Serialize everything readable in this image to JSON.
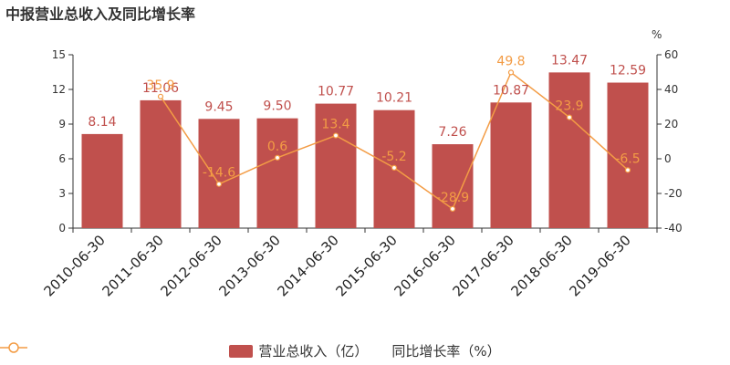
{
  "title": "中报营业总收入及同比增长率",
  "colors": {
    "bar": "#c0504d",
    "line": "#f39c45",
    "axis": "#333333",
    "grid": "#cccccc"
  },
  "chart_data": {
    "type": "bar",
    "title": "中报营业总收入及同比增长率",
    "categories": [
      "2010-06-30",
      "2011-06-30",
      "2012-06-30",
      "2013-06-30",
      "2014-06-30",
      "2015-06-30",
      "2016-06-30",
      "2017-06-30",
      "2018-06-30",
      "2019-06-30"
    ],
    "series": [
      {
        "name": "营业总收入（亿）",
        "type": "bar",
        "axis": "left",
        "values": [
          8.14,
          11.06,
          9.45,
          9.5,
          10.77,
          10.21,
          7.26,
          10.87,
          13.47,
          12.59
        ],
        "labels": [
          "8.14",
          "11.06",
          "9.45",
          "9.50",
          "10.77",
          "10.21",
          "7.26",
          "10.87",
          "13.47",
          "12.59"
        ]
      },
      {
        "name": "同比增长率（%）",
        "type": "line",
        "axis": "right",
        "values": [
          null,
          35.9,
          -14.6,
          0.6,
          13.4,
          -5.2,
          -28.9,
          49.8,
          23.9,
          -6.5
        ],
        "labels": [
          "",
          "35.9",
          "-14.6",
          "0.6",
          "13.4",
          "-5.2",
          "-28.9",
          "49.8",
          "23.9",
          "-6.5"
        ]
      }
    ],
    "y_left": {
      "ylim": [
        0,
        15
      ],
      "ticks": [
        "0",
        "3",
        "6",
        "9",
        "12",
        "15"
      ]
    },
    "y_right": {
      "ylim": [
        -40,
        60
      ],
      "ticks": [
        "-40",
        "-20",
        "0",
        "20",
        "40",
        "60"
      ],
      "unit": "%"
    },
    "legend": {
      "position": "bottom",
      "items": [
        "营业总收入（亿）",
        "同比增长率（%）"
      ]
    },
    "grid": false
  }
}
